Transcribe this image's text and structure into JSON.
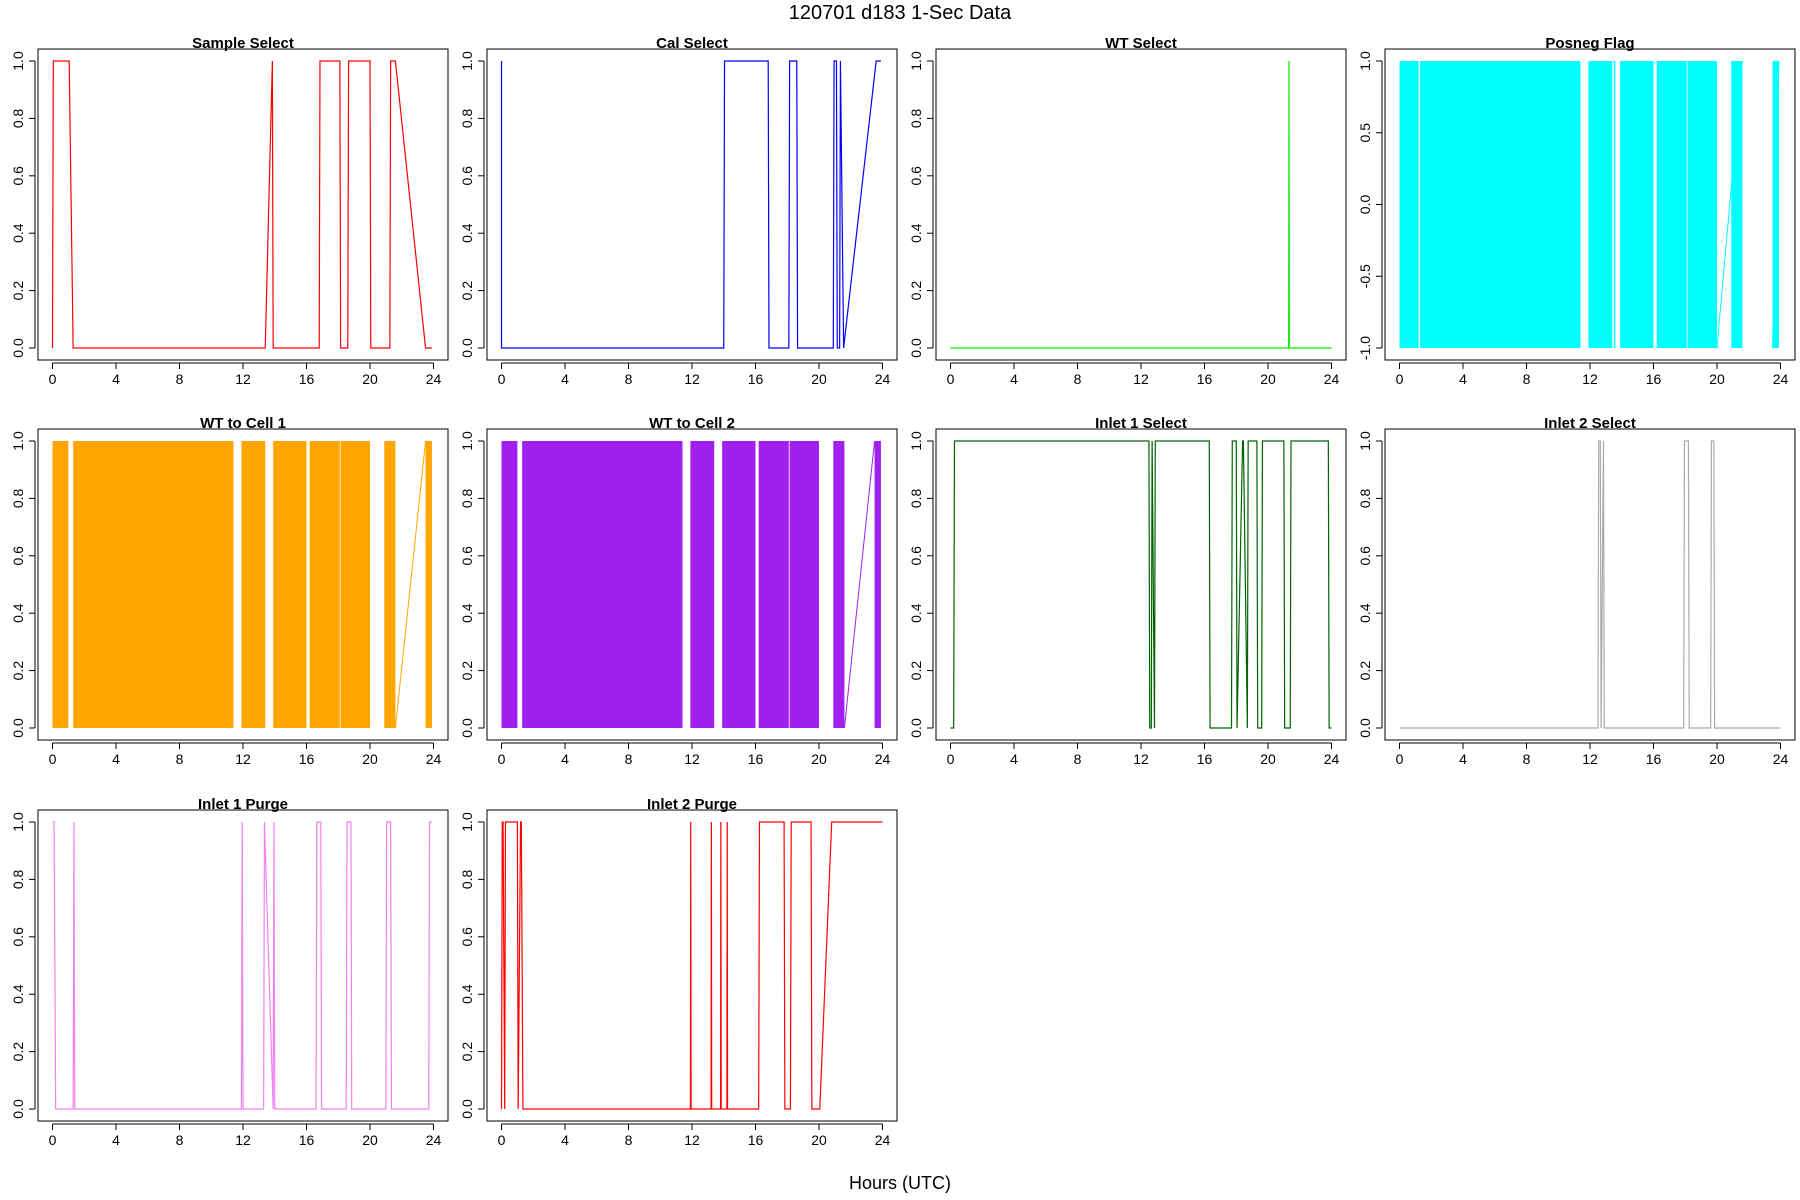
{
  "figure": {
    "title": "120701   d183   1-Sec Data",
    "xlabel": "Hours (UTC)"
  },
  "chart_data": [
    {
      "type": "line",
      "title": "Sample Select",
      "color": "#ff0000",
      "xlim": [
        0,
        24
      ],
      "ylim": [
        0,
        1
      ],
      "xticks": [
        0,
        4,
        8,
        12,
        16,
        20,
        24
      ],
      "yticks": [
        0,
        0.2,
        0.4,
        0.6,
        0.8,
        1
      ],
      "ytick_labels": [
        "0.0",
        "0.2",
        "0.4",
        "0.6",
        "0.8",
        "1.0"
      ],
      "x": [
        0,
        0.05,
        1,
        1.05,
        1.3,
        13.4,
        13.85,
        13.9,
        14.0,
        16.8,
        16.85,
        18.1,
        18.15,
        18.6,
        18.65,
        20.0,
        20.05,
        20.9,
        20.95,
        21.25,
        21.3,
        21.6,
        23.5,
        23.9
      ],
      "y": [
        0,
        1,
        1,
        1,
        0,
        0,
        1,
        0,
        0,
        0,
        1,
        1,
        0,
        0,
        1,
        1,
        0,
        0,
        0,
        0,
        1,
        1,
        0,
        0
      ]
    },
    {
      "type": "line",
      "title": "Cal Select",
      "color": "#0000ff",
      "xlim": [
        0,
        24
      ],
      "ylim": [
        0,
        1
      ],
      "xticks": [
        0,
        4,
        8,
        12,
        16,
        20,
        24
      ],
      "yticks": [
        0,
        0.2,
        0.4,
        0.6,
        0.8,
        1
      ],
      "ytick_labels": [
        "0.0",
        "0.2",
        "0.4",
        "0.6",
        "0.8",
        "1.0"
      ],
      "x": [
        0,
        0,
        0.05,
        14.0,
        14.05,
        16.8,
        16.85,
        18.1,
        18.15,
        18.6,
        18.65,
        20.0,
        20.05,
        20.9,
        20.95,
        21.1,
        21.15,
        21.3,
        21.35,
        21.55,
        23.6,
        23.9
      ],
      "y": [
        1,
        0,
        0,
        0,
        1,
        1,
        0,
        0,
        1,
        1,
        0,
        0,
        0,
        0,
        1,
        1,
        0,
        0,
        1,
        0,
        1,
        1
      ]
    },
    {
      "type": "line",
      "title": "WT Select",
      "color": "#00ee00",
      "xlim": [
        0,
        24
      ],
      "ylim": [
        0,
        1
      ],
      "xticks": [
        0,
        4,
        8,
        12,
        16,
        20,
        24
      ],
      "yticks": [
        0,
        0.2,
        0.4,
        0.6,
        0.8,
        1
      ],
      "ytick_labels": [
        "0.0",
        "0.2",
        "0.4",
        "0.6",
        "0.8",
        "1.0"
      ],
      "x": [
        0,
        21.3,
        21.32,
        21.34,
        24
      ],
      "y": [
        0,
        0,
        1,
        0,
        0
      ]
    },
    {
      "type": "area",
      "title": "Posneg Flag",
      "color": "#00ffff",
      "xlim": [
        0,
        24
      ],
      "ylim": [
        -1,
        1
      ],
      "xticks": [
        0,
        4,
        8,
        12,
        16,
        20,
        24
      ],
      "yticks": [
        -1,
        -0.5,
        0,
        0.5,
        1
      ],
      "ytick_labels": [
        "-1.0",
        "-0.5",
        "0.0",
        "0.5",
        "1.0"
      ],
      "blocks": [
        [
          0,
          1.2
        ],
        [
          1.3,
          11.4
        ],
        [
          11.9,
          13.4
        ],
        [
          13.5,
          13.6
        ],
        [
          13.9,
          16.0
        ],
        [
          16.2,
          18.1
        ],
        [
          18.15,
          20.0
        ],
        [
          20.9,
          21.6
        ],
        [
          23.5,
          23.9
        ]
      ],
      "connector": [
        [
          20.0,
          21.6
        ],
        [
          23.5,
          23.9
        ]
      ]
    },
    {
      "type": "area",
      "title": "WT to Cell 1",
      "color": "#ffa500",
      "xlim": [
        0,
        24
      ],
      "ylim": [
        0,
        1
      ],
      "xticks": [
        0,
        4,
        8,
        12,
        16,
        20,
        24
      ],
      "yticks": [
        0,
        0.2,
        0.4,
        0.6,
        0.8,
        1
      ],
      "ytick_labels": [
        "0.0",
        "0.2",
        "0.4",
        "0.6",
        "0.8",
        "1.0"
      ],
      "blocks": [
        [
          0,
          1.0
        ],
        [
          1.3,
          11.4
        ],
        [
          11.9,
          13.4
        ],
        [
          13.9,
          16.0
        ],
        [
          16.2,
          18.1
        ],
        [
          18.15,
          20.0
        ],
        [
          20.9,
          21.6
        ],
        [
          23.5,
          23.9
        ]
      ],
      "connector": [
        [
          21.6,
          23.5
        ]
      ]
    },
    {
      "type": "area",
      "title": "WT to Cell 2",
      "color": "#a020f0",
      "xlim": [
        0,
        24
      ],
      "ylim": [
        0,
        1
      ],
      "xticks": [
        0,
        4,
        8,
        12,
        16,
        20,
        24
      ],
      "yticks": [
        0,
        0.2,
        0.4,
        0.6,
        0.8,
        1
      ],
      "ytick_labels": [
        "0.0",
        "0.2",
        "0.4",
        "0.6",
        "0.8",
        "1.0"
      ],
      "blocks": [
        [
          0,
          1.0
        ],
        [
          1.3,
          11.4
        ],
        [
          11.9,
          13.4
        ],
        [
          13.9,
          16.0
        ],
        [
          16.2,
          18.1
        ],
        [
          18.15,
          20.0
        ],
        [
          20.9,
          21.6
        ],
        [
          23.5,
          23.9
        ]
      ],
      "connector": [
        [
          21.6,
          23.5
        ]
      ]
    },
    {
      "type": "line",
      "title": "Inlet 1 Select",
      "color": "#006400",
      "xlim": [
        0,
        24
      ],
      "ylim": [
        0,
        1
      ],
      "xticks": [
        0,
        4,
        8,
        12,
        16,
        20,
        24
      ],
      "yticks": [
        0,
        0.2,
        0.4,
        0.6,
        0.8,
        1
      ],
      "ytick_labels": [
        "0.0",
        "0.2",
        "0.4",
        "0.6",
        "0.8",
        "1.0"
      ],
      "x": [
        0,
        0.2,
        0.25,
        12.5,
        12.55,
        12.65,
        12.7,
        12.85,
        12.9,
        16.3,
        16.35,
        16.9,
        16.95,
        17.7,
        17.75,
        18.0,
        18.05,
        18.4,
        18.45,
        18.7,
        18.75,
        19.3,
        19.35,
        19.6,
        19.65,
        21.0,
        21.05,
        21.4,
        21.45,
        23.8,
        23.85,
        24
      ],
      "y": [
        0,
        0,
        1,
        1,
        0,
        0,
        1,
        0,
        1,
        1,
        0,
        0,
        0,
        0,
        1,
        1,
        0,
        1,
        1,
        0,
        1,
        1,
        0,
        0,
        1,
        1,
        0,
        0,
        1,
        1,
        0,
        0
      ]
    },
    {
      "type": "line",
      "title": "Inlet 2 Select",
      "color": "#aaaaaa",
      "xlim": [
        0,
        24
      ],
      "ylim": [
        0,
        1
      ],
      "xticks": [
        0,
        4,
        8,
        12,
        16,
        20,
        24
      ],
      "yticks": [
        0,
        0.2,
        0.4,
        0.6,
        0.8,
        1
      ],
      "ytick_labels": [
        "0.0",
        "0.2",
        "0.4",
        "0.6",
        "0.8",
        "1.0"
      ],
      "x": [
        0,
        12.5,
        12.55,
        12.65,
        12.7,
        12.85,
        12.9,
        17.9,
        17.95,
        18.2,
        18.25,
        19.6,
        19.65,
        19.8,
        19.85,
        24
      ],
      "y": [
        0,
        0,
        1,
        1,
        0,
        1,
        0,
        0,
        1,
        1,
        0,
        0,
        1,
        1,
        0,
        0
      ]
    },
    {
      "type": "line",
      "title": "Inlet 1 Purge",
      "color": "#ee82ee",
      "xlim": [
        0,
        24
      ],
      "ylim": [
        0,
        1
      ],
      "xticks": [
        0,
        4,
        8,
        12,
        16,
        20,
        24
      ],
      "yticks": [
        0,
        0.2,
        0.4,
        0.6,
        0.8,
        1
      ],
      "ytick_labels": [
        "0.0",
        "0.2",
        "0.4",
        "0.6",
        "0.8",
        "1.0"
      ],
      "x": [
        0,
        0.1,
        0.2,
        1.3,
        1.35,
        1.4,
        11.9,
        11.95,
        12.0,
        13.3,
        13.35,
        13.9,
        13.95,
        14.0,
        16.6,
        16.65,
        16.9,
        16.95,
        18.5,
        18.55,
        18.8,
        18.85,
        21.0,
        21.05,
        21.3,
        21.35,
        23.7,
        23.75,
        23.9
      ],
      "y": [
        1,
        1,
        0,
        0,
        1,
        0,
        0,
        1,
        0,
        0,
        1,
        0,
        1,
        0,
        0,
        1,
        1,
        0,
        0,
        1,
        1,
        0,
        0,
        1,
        1,
        0,
        0,
        1,
        1
      ]
    },
    {
      "type": "line",
      "title": "Inlet 2 Purge",
      "color": "#ff0000",
      "xlim": [
        0,
        24
      ],
      "ylim": [
        0,
        1
      ],
      "xticks": [
        0,
        4,
        8,
        12,
        16,
        20,
        24
      ],
      "yticks": [
        0,
        0.2,
        0.4,
        0.6,
        0.8,
        1
      ],
      "ytick_labels": [
        "0.0",
        "0.2",
        "0.4",
        "0.6",
        "0.8",
        "1.0"
      ],
      "x": [
        0,
        0.05,
        0.1,
        0.2,
        0.25,
        1.0,
        1.05,
        1.2,
        1.25,
        1.35,
        11.9,
        11.92,
        11.94,
        13.2,
        13.22,
        13.24,
        13.8,
        13.82,
        13.84,
        14.2,
        14.22,
        14.24,
        16.2,
        16.25,
        17.8,
        17.85,
        18.2,
        18.25,
        19.5,
        19.55,
        20.0,
        20.05,
        20.8,
        20.9,
        24
      ],
      "y": [
        0,
        1,
        1,
        0,
        1,
        1,
        0,
        1,
        1,
        0,
        0,
        1,
        0,
        0,
        1,
        0,
        0,
        1,
        0,
        0,
        1,
        0,
        0,
        1,
        1,
        0,
        0,
        1,
        1,
        0,
        0,
        0,
        1,
        1,
        1
      ]
    }
  ]
}
